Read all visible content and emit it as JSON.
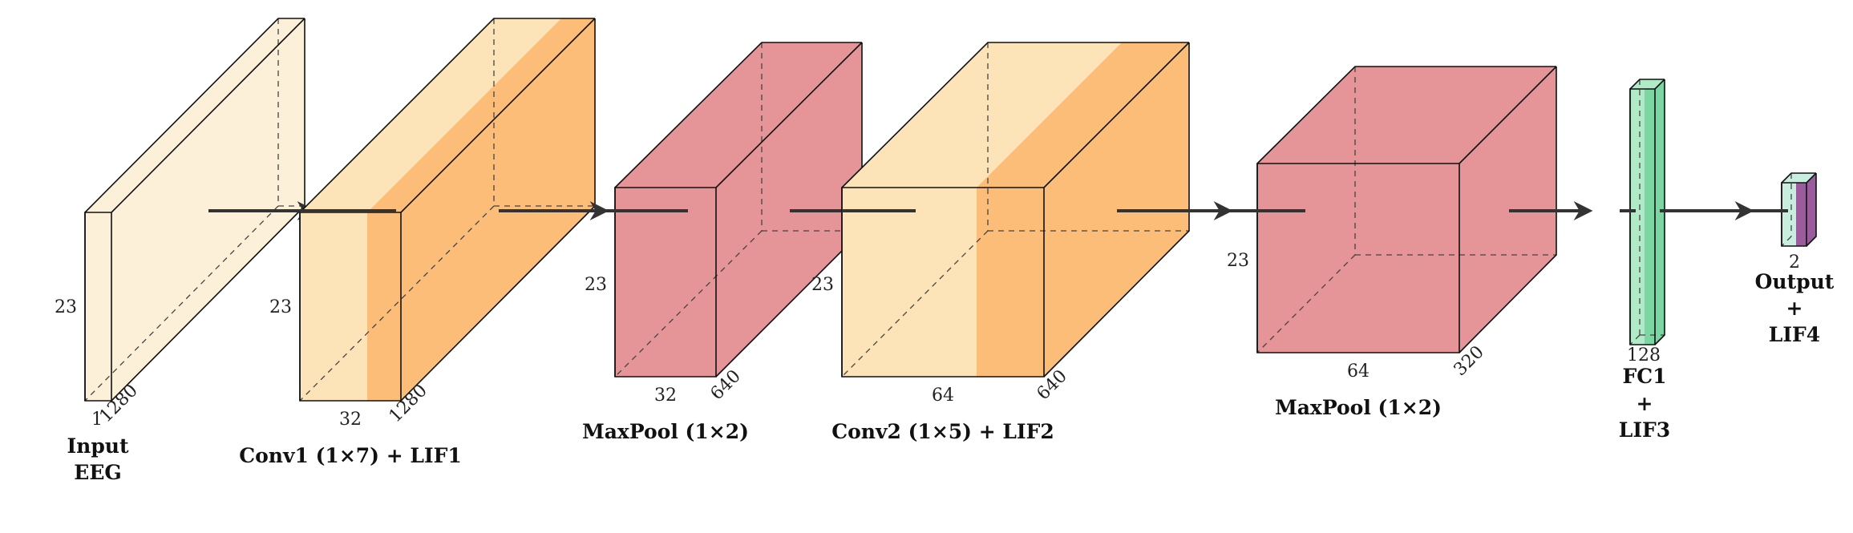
{
  "colors": {
    "input": "#fdf0d8",
    "conv_light": "#fde3b8",
    "conv_dark": "#fcbd79",
    "pool": "#e59497",
    "fc": "#b1eac6",
    "fc_dark": "#7cd6a2",
    "output": "#c8eee0",
    "output_dark": "#9b5c9e",
    "arrow": "#333333"
  },
  "layers": [
    {
      "id": "input",
      "dims": {
        "h": "23",
        "w": "1",
        "d": "1280"
      },
      "caption": [
        "Input",
        "EEG"
      ]
    },
    {
      "id": "conv1",
      "dims": {
        "h": "23",
        "w": "32",
        "d": "1280"
      },
      "caption": [
        "Conv1 (1×7) + LIF1"
      ]
    },
    {
      "id": "pool1",
      "dims": {
        "h": "23",
        "w": "32",
        "d": "640"
      },
      "caption": [
        "MaxPool (1×2)"
      ]
    },
    {
      "id": "conv2",
      "dims": {
        "h": "23",
        "w": "64",
        "d": "640"
      },
      "caption": [
        "Conv2 (1×5) + LIF2"
      ]
    },
    {
      "id": "pool2",
      "dims": {
        "h": "23",
        "w": "64",
        "d": "320"
      },
      "caption": [
        "MaxPool (1×2)"
      ]
    },
    {
      "id": "fc1",
      "dims": {
        "h": "",
        "w": "128",
        "d": ""
      },
      "caption": [
        "FC1",
        "+",
        "LIF3"
      ]
    },
    {
      "id": "output",
      "dims": {
        "h": "",
        "w": "2",
        "d": ""
      },
      "caption": [
        "Output",
        "+",
        "LIF4"
      ]
    }
  ]
}
